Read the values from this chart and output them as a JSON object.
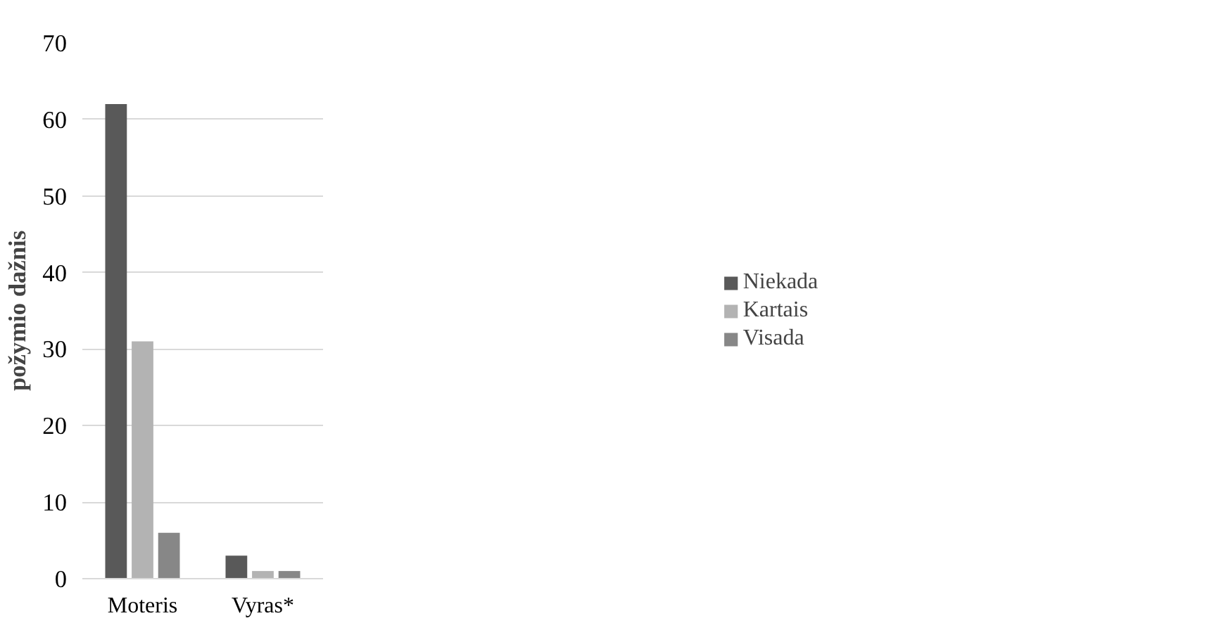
{
  "chart_data": {
    "type": "bar",
    "ylabel": "požymio dažnis",
    "categories": [
      "Moteris",
      "Vyras*"
    ],
    "series": [
      {
        "name": "Niekada",
        "color": "#595959",
        "values": [
          62,
          3
        ]
      },
      {
        "name": "Kartais",
        "color": "#b3b3b3",
        "values": [
          31,
          1
        ]
      },
      {
        "name": "Visada",
        "color": "#878787",
        "values": [
          6,
          1
        ]
      }
    ],
    "ylim": [
      0,
      70
    ],
    "yticks": [
      0,
      10,
      20,
      30,
      40,
      50,
      60,
      70
    ],
    "grid": "y",
    "legend": "right"
  }
}
